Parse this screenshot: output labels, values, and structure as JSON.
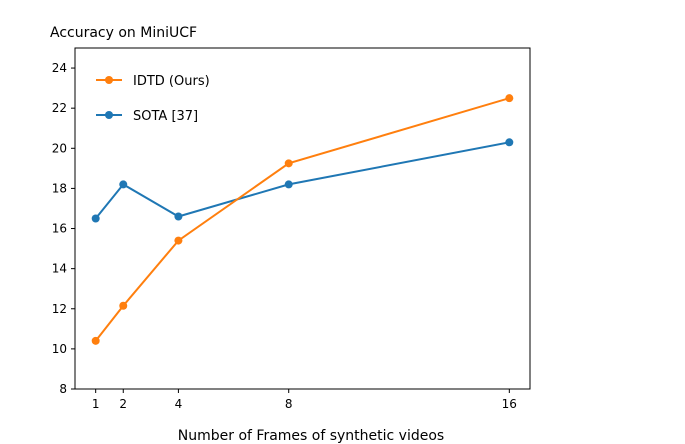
{
  "chart_data": {
    "type": "line",
    "title": "Accuracy on MiniUCF",
    "xlabel": "Number of Frames of synthetic videos",
    "ylabel": "",
    "x": [
      1,
      2,
      4,
      8,
      16
    ],
    "xticks": [
      1,
      2,
      4,
      8,
      16
    ],
    "xlim": [
      0.25,
      16.75
    ],
    "ylim": [
      8,
      25
    ],
    "yticks": [
      8,
      10,
      12,
      14,
      16,
      18,
      20,
      22,
      24
    ],
    "grid": false,
    "legend_position": "upper-left",
    "series": [
      {
        "name": "IDTD (Ours)",
        "color": "#ff7f0e",
        "values": [
          10.4,
          12.15,
          15.4,
          19.25,
          22.5
        ]
      },
      {
        "name": "SOTA [37]",
        "color": "#1f77b4",
        "values": [
          16.5,
          18.2,
          16.6,
          18.2,
          20.3
        ]
      }
    ]
  }
}
